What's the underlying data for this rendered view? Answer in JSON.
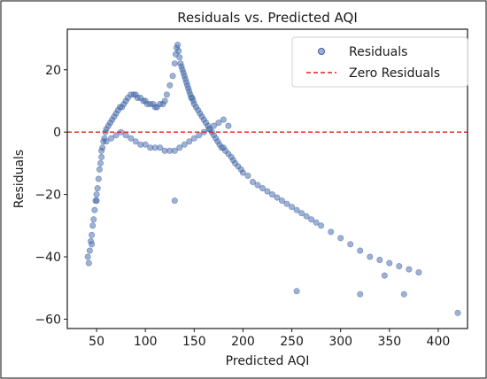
{
  "chart_data": {
    "type": "scatter",
    "title": "Residuals vs. Predicted AQI",
    "xlabel": "Predicted AQI",
    "ylabel": "Residuals",
    "xlim": [
      20,
      430
    ],
    "ylim": [
      -63,
      33
    ],
    "xticks": [
      50,
      100,
      150,
      200,
      250,
      300,
      350,
      400
    ],
    "yticks": [
      -60,
      -40,
      -20,
      0,
      20
    ],
    "grid": false,
    "legend_position": "top-right",
    "legend": [
      {
        "label": "Residuals",
        "kind": "marker"
      },
      {
        "label": "Zero Residuals",
        "kind": "dashed-line"
      }
    ],
    "colors": {
      "points": "#4c72b0",
      "points_edge": "#3b5a9a",
      "zero_line": "#e0201b",
      "axes_frame": "#1a1a1a",
      "figure_border": "#333333"
    },
    "reference_line": {
      "name": "Zero Residuals",
      "y": 0,
      "style": "dashed"
    },
    "series": [
      {
        "name": "Residuals",
        "x": [
          41,
          42,
          43,
          44,
          45,
          46,
          47,
          48,
          49,
          50,
          51,
          52,
          53,
          54,
          55,
          56,
          57,
          58,
          59,
          60,
          62,
          64,
          66,
          68,
          70,
          72,
          74,
          76,
          78,
          80,
          82,
          85,
          88,
          90,
          92,
          95,
          98,
          100,
          102,
          105,
          108,
          110,
          112,
          115,
          118,
          120,
          122,
          125,
          128,
          130,
          131,
          132,
          133,
          134,
          135,
          136,
          137,
          138,
          139,
          140,
          141,
          142,
          143,
          144,
          145,
          146,
          147,
          148,
          149,
          150,
          152,
          154,
          156,
          158,
          160,
          162,
          164,
          166,
          168,
          170,
          172,
          174,
          176,
          178,
          180,
          182,
          185,
          188,
          190,
          192,
          195,
          198,
          200,
          205,
          210,
          215,
          220,
          225,
          230,
          235,
          240,
          245,
          250,
          255,
          260,
          265,
          270,
          275,
          280,
          290,
          300,
          310,
          320,
          330,
          340,
          350,
          360,
          370,
          380,
          420,
          45,
          50,
          55,
          60,
          65,
          70,
          75,
          80,
          85,
          90,
          95,
          100,
          105,
          110,
          115,
          120,
          125,
          130,
          135,
          140,
          145,
          150,
          155,
          160,
          165,
          170,
          175,
          180,
          185,
          130,
          255,
          320,
          345,
          365
        ],
        "y": [
          -40,
          -42,
          -38,
          -35,
          -33,
          -30,
          -28,
          -25,
          -22,
          -20,
          -18,
          -15,
          -12,
          -10,
          -8,
          -5,
          -3,
          -2,
          0,
          1,
          2,
          3,
          4,
          5,
          6,
          7,
          8,
          8,
          9,
          10,
          11,
          12,
          12,
          12,
          11,
          11,
          10,
          10,
          9,
          9,
          9,
          8,
          8,
          9,
          9,
          10,
          12,
          15,
          18,
          22,
          25,
          27,
          28,
          26,
          24,
          22,
          21,
          20,
          19,
          18,
          17,
          16,
          15,
          14,
          13,
          12,
          11,
          11,
          10,
          9,
          8,
          7,
          6,
          5,
          4,
          3,
          2,
          1,
          0,
          -1,
          -2,
          -3,
          -4,
          -5,
          -5,
          -6,
          -7,
          -8,
          -9,
          -10,
          -11,
          -12,
          -13,
          -14,
          -16,
          -17,
          -18,
          -19,
          -20,
          -21,
          -22,
          -23,
          -24,
          -25,
          -26,
          -27,
          -28,
          -29,
          -30,
          -32,
          -34,
          -36,
          -38,
          -40,
          -41,
          -42,
          -43,
          -44,
          -45,
          -58,
          -36,
          -22,
          -6,
          -3,
          -2,
          -1,
          0,
          -1,
          -2,
          -3,
          -4,
          -4,
          -5,
          -5,
          -5,
          -6,
          -6,
          -6,
          -5,
          -4,
          -3,
          -2,
          -1,
          0,
          1,
          2,
          3,
          4,
          2,
          -22,
          -51,
          -52,
          -46,
          -52
        ]
      }
    ]
  }
}
